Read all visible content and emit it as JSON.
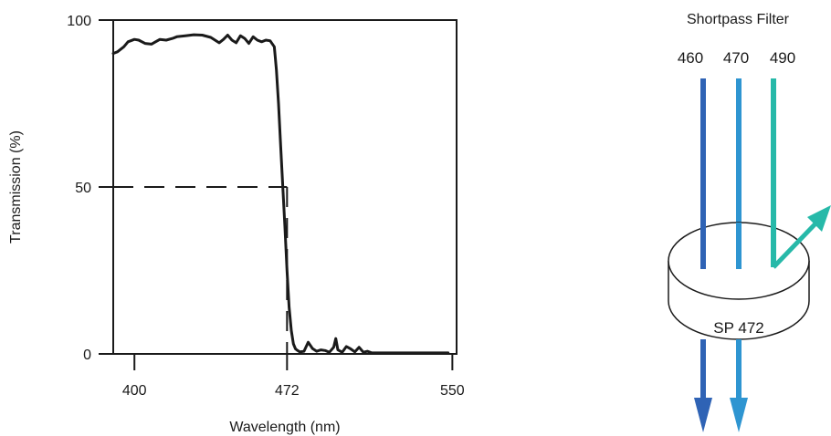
{
  "chart_data": {
    "type": "line",
    "xlabel": "Wavelength (nm)",
    "ylabel": "Transmission (%)",
    "xlim": [
      390,
      552
    ],
    "ylim": [
      0,
      100
    ],
    "x_ticks": [
      400,
      472,
      550
    ],
    "y_ticks": [
      0,
      50,
      100
    ],
    "grid": false,
    "reference_line": {
      "x": 472,
      "y": 50,
      "style": "dashed"
    },
    "series": [
      {
        "x": [
          390,
          392,
          395,
          397,
          400,
          402,
          405,
          408,
          410,
          412,
          415,
          418,
          420,
          424,
          428,
          432,
          436,
          440,
          442,
          444,
          446,
          448,
          450,
          452,
          454,
          456,
          458,
          460,
          462,
          464,
          466,
          467,
          468,
          469,
          470,
          471,
          472,
          473,
          474,
          475,
          476,
          477,
          478,
          480,
          482,
          484,
          486,
          488,
          490,
          492,
          494,
          495,
          496,
          498,
          500,
          502,
          504,
          506,
          508,
          510,
          512,
          515,
          520,
          530,
          540,
          548
        ],
        "y": [
          90,
          90.5,
          92,
          93.5,
          94.2,
          94,
          93,
          92.8,
          93.5,
          94.2,
          94,
          94.5,
          95,
          95.3,
          95.6,
          95.5,
          94.8,
          93.2,
          94.2,
          95.5,
          94,
          93.2,
          95.3,
          94.5,
          93,
          95,
          94,
          93.5,
          94,
          93.8,
          92,
          85,
          75,
          62,
          50,
          38,
          25,
          14,
          7,
          3,
          1.5,
          1,
          0.6,
          0.8,
          3.5,
          1.6,
          0.8,
          1.2,
          1,
          0.5,
          2,
          4.6,
          1.2,
          0.5,
          2.2,
          1.5,
          0.6,
          2,
          0.5,
          0.8,
          0.3,
          0.3,
          0.3,
          0.3,
          0.3,
          0.3
        ]
      }
    ]
  },
  "diagram": {
    "title": "Shortpass Filter",
    "filter_label": "SP 472",
    "beams": [
      {
        "label": "460",
        "color": "#2f63b5",
        "transmitted": true
      },
      {
        "label": "470",
        "color": "#2e95d1",
        "transmitted": true
      },
      {
        "label": "490",
        "color": "#27b9a9",
        "transmitted": false
      }
    ]
  }
}
